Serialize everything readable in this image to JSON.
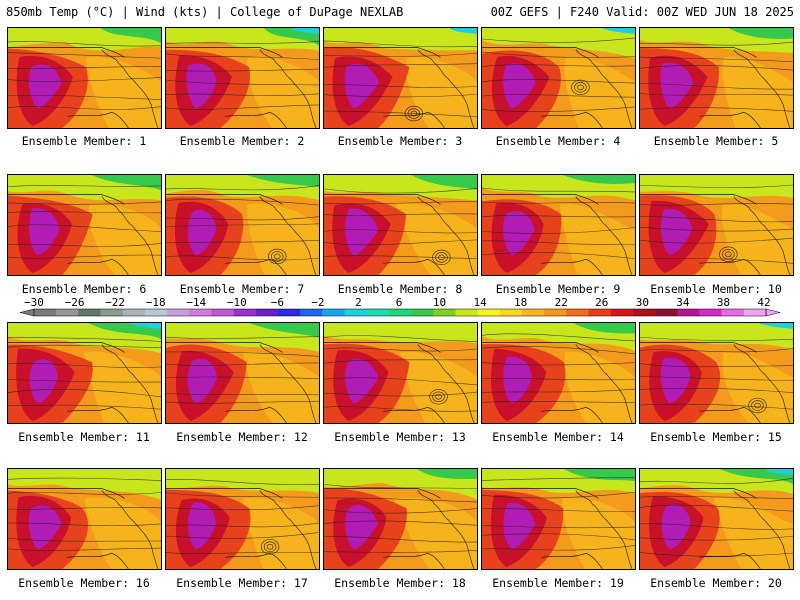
{
  "header": {
    "left_title": "850mb Temp (°C) | Wind (kts) | College of DuPage NEXLAB",
    "right_title": "00Z GEFS | F240 Valid: 00Z WED JUN 18 2025"
  },
  "panels": [
    {
      "member": 1,
      "label": "Ensemble Member: 1"
    },
    {
      "member": 2,
      "label": "Ensemble Member: 2"
    },
    {
      "member": 3,
      "label": "Ensemble Member: 3"
    },
    {
      "member": 4,
      "label": "Ensemble Member: 4"
    },
    {
      "member": 5,
      "label": "Ensemble Member: 5"
    },
    {
      "member": 6,
      "label": "Ensemble Member: 6"
    },
    {
      "member": 7,
      "label": "Ensemble Member: 7"
    },
    {
      "member": 8,
      "label": "Ensemble Member: 8"
    },
    {
      "member": 9,
      "label": "Ensemble Member: 9"
    },
    {
      "member": 10,
      "label": "Ensemble Member: 10"
    },
    {
      "member": 11,
      "label": "Ensemble Member: 11"
    },
    {
      "member": 12,
      "label": "Ensemble Member: 12"
    },
    {
      "member": 13,
      "label": "Ensemble Member: 13"
    },
    {
      "member": 14,
      "label": "Ensemble Member: 14"
    },
    {
      "member": 15,
      "label": "Ensemble Member: 15"
    },
    {
      "member": 16,
      "label": "Ensemble Member: 16"
    },
    {
      "member": 17,
      "label": "Ensemble Member: 17"
    },
    {
      "member": 18,
      "label": "Ensemble Member: 18"
    },
    {
      "member": 19,
      "label": "Ensemble Member: 19"
    },
    {
      "member": 20,
      "label": "Ensemble Member: 20"
    }
  ],
  "colorbar": {
    "labels": [
      "−30",
      "−26",
      "−22",
      "−18",
      "−14",
      "−10",
      "−6",
      "−2",
      "2",
      "6",
      "10",
      "14",
      "18",
      "22",
      "26",
      "30",
      "34",
      "38",
      "42"
    ],
    "colors": [
      "#7a7a7a",
      "#969696",
      "#5e7a68",
      "#8a9c8e",
      "#a8b4b8",
      "#b7c7d6",
      "#c79fd6",
      "#d27ae0",
      "#c257d6",
      "#9a2ed0",
      "#6a1fc8",
      "#2b2be0",
      "#1e66f0",
      "#15a6f0",
      "#18d2e0",
      "#1cdcb0",
      "#1ed67c",
      "#37c94a",
      "#7dd11c",
      "#c8e61c",
      "#f5f51c",
      "#f6d81c",
      "#f8b61c",
      "#f8961c",
      "#f26a1c",
      "#ea3c1c",
      "#d9141c",
      "#b0101c",
      "#8c0e30",
      "#b41496",
      "#d828cc",
      "#e86ae6",
      "#f0a4f0"
    ]
  },
  "map_colors": {
    "hot_core": "#b01cb4",
    "very_hot": "#c8102a",
    "hot": "#e8421c",
    "warm": "#f49a1c",
    "mild": "#f8c81c",
    "cool": "#c8e61c",
    "cold": "#37c94a",
    "coldest": "#18d2e0"
  }
}
